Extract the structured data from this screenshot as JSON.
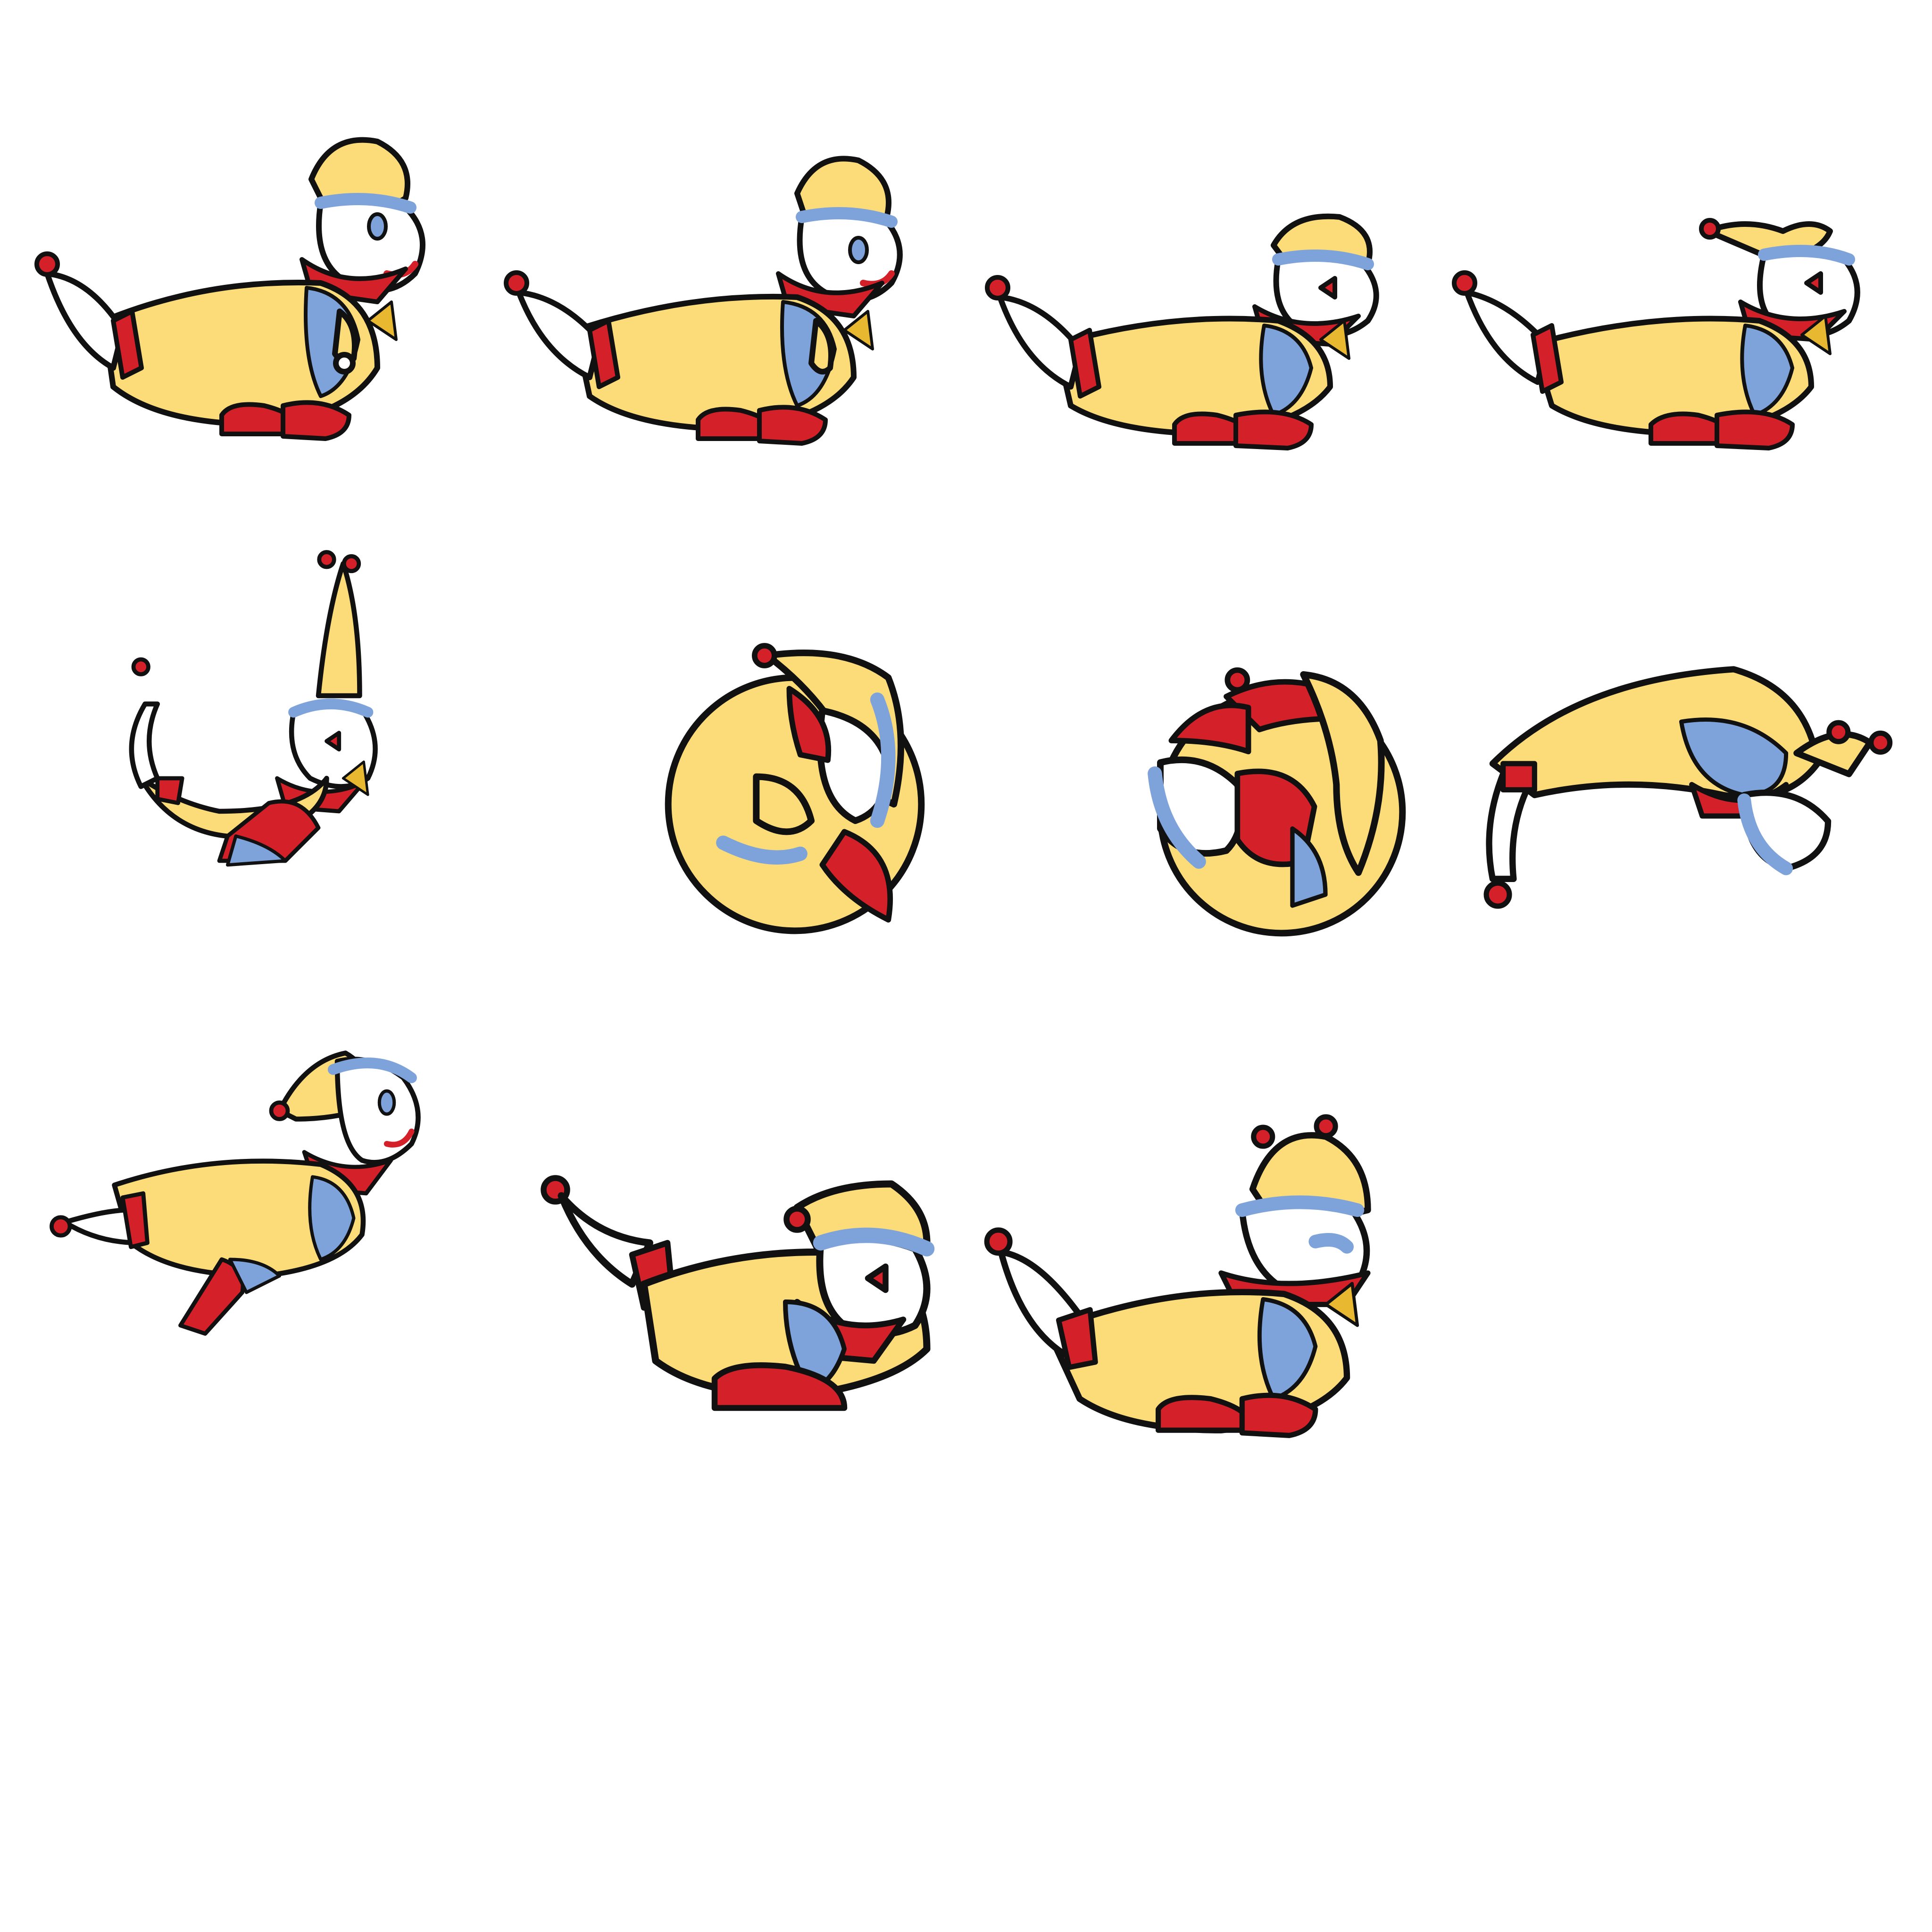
{
  "sheet": {
    "background": "#ffffff"
  },
  "palette": {
    "outline": "#111111",
    "suit_yellow": "#fcdc78",
    "trim_blue": "#7ea3db",
    "accent_red": "#d42028",
    "face_white": "#ffffff",
    "fan_gold": "#e8b830"
  },
  "frames": [
    {
      "pose": "lean-kick"
    },
    {
      "pose": "lean-kick"
    },
    {
      "pose": "crouch-kick"
    },
    {
      "pose": "crouch-kick"
    },
    {
      "pose": "upright-spring"
    },
    {
      "pose": "curl-spin"
    },
    {
      "pose": "curl-spin"
    },
    {
      "pose": "upside-down-flip"
    },
    {
      "pose": "airborne-leap"
    },
    {
      "pose": "land-crouch"
    },
    {
      "pose": "land-kick"
    }
  ]
}
